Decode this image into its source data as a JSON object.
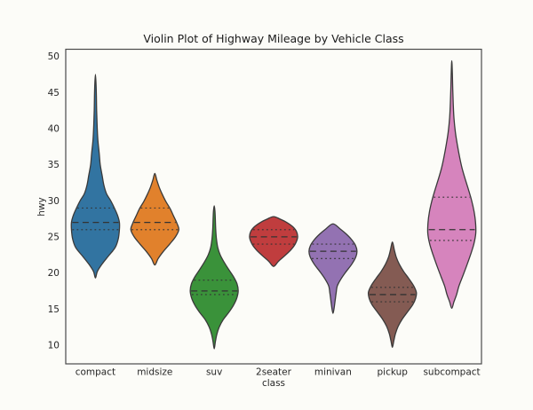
{
  "chart_data": {
    "type": "violin",
    "title": "Violin Plot of Highway Mileage by Vehicle Class",
    "xlabel": "class",
    "ylabel": "hwy",
    "ylim": [
      7.4,
      51.0
    ],
    "yticks": [
      10,
      15,
      20,
      25,
      30,
      35,
      40,
      45,
      50
    ],
    "grid": false,
    "legend": "none",
    "inner": "quartile",
    "categories": [
      "compact",
      "midsize",
      "suv",
      "2seater",
      "minivan",
      "pickup",
      "subcompact"
    ],
    "series": [
      {
        "name": "compact",
        "color": "#3274a1",
        "min": 19.3,
        "max": 47.5,
        "q1": 26,
        "median": 27,
        "q3": 29,
        "profile": [
          [
            19.3,
            0
          ],
          [
            20.2,
            0.08
          ],
          [
            21.2,
            0.27
          ],
          [
            22.3,
            0.53
          ],
          [
            23.5,
            0.82
          ],
          [
            24.7,
            0.95
          ],
          [
            26.0,
            1.0
          ],
          [
            27.0,
            1.0
          ],
          [
            28.0,
            0.92
          ],
          [
            29.0,
            0.79
          ],
          [
            30.0,
            0.64
          ],
          [
            31.0,
            0.46
          ],
          [
            32.2,
            0.35
          ],
          [
            33.5,
            0.28
          ],
          [
            35.0,
            0.2
          ],
          [
            36.5,
            0.16
          ],
          [
            38.5,
            0.1
          ],
          [
            40.5,
            0.07
          ],
          [
            42.5,
            0.05
          ],
          [
            44.5,
            0.04
          ],
          [
            46.2,
            0.025
          ],
          [
            47.5,
            0
          ]
        ]
      },
      {
        "name": "midsize",
        "color": "#e1812c",
        "min": 21.1,
        "max": 33.8,
        "q1": 26,
        "median": 27,
        "q3": 29,
        "profile": [
          [
            21.1,
            0
          ],
          [
            22.0,
            0.14
          ],
          [
            23.0,
            0.36
          ],
          [
            24.0,
            0.62
          ],
          [
            25.0,
            0.86
          ],
          [
            26.0,
            1.0
          ],
          [
            26.9,
            0.92
          ],
          [
            27.9,
            0.78
          ],
          [
            28.9,
            0.64
          ],
          [
            29.9,
            0.46
          ],
          [
            30.9,
            0.31
          ],
          [
            31.9,
            0.18
          ],
          [
            32.9,
            0.08
          ],
          [
            33.8,
            0
          ]
        ]
      },
      {
        "name": "suv",
        "color": "#3a923a",
        "min": 9.5,
        "max": 29.3,
        "q1": 17,
        "median": 17.5,
        "q3": 19,
        "profile": [
          [
            9.5,
            0
          ],
          [
            10.5,
            0.05
          ],
          [
            11.5,
            0.11
          ],
          [
            12.5,
            0.21
          ],
          [
            13.5,
            0.37
          ],
          [
            14.5,
            0.6
          ],
          [
            15.5,
            0.8
          ],
          [
            16.5,
            0.94
          ],
          [
            17.5,
            1.0
          ],
          [
            18.5,
            0.95
          ],
          [
            19.5,
            0.8
          ],
          [
            20.5,
            0.6
          ],
          [
            21.5,
            0.41
          ],
          [
            22.5,
            0.25
          ],
          [
            23.5,
            0.15
          ],
          [
            24.8,
            0.09
          ],
          [
            26.2,
            0.06
          ],
          [
            27.6,
            0.045
          ],
          [
            28.6,
            0.03
          ],
          [
            29.3,
            0
          ]
        ]
      },
      {
        "name": "2seater",
        "color": "#c03d3e",
        "min": 20.9,
        "max": 27.8,
        "q1": 24,
        "median": 25,
        "q3": 26,
        "profile": [
          [
            20.9,
            0
          ],
          [
            21.6,
            0.2
          ],
          [
            22.4,
            0.47
          ],
          [
            23.2,
            0.72
          ],
          [
            24.0,
            0.9
          ],
          [
            24.9,
            1.0
          ],
          [
            25.7,
            0.96
          ],
          [
            26.4,
            0.8
          ],
          [
            27.0,
            0.55
          ],
          [
            27.45,
            0.28
          ],
          [
            27.8,
            0
          ]
        ]
      },
      {
        "name": "minivan",
        "color": "#9372b2",
        "min": 14.4,
        "max": 26.8,
        "q1": 22,
        "median": 23,
        "q3": 24,
        "profile": [
          [
            14.4,
            0
          ],
          [
            15.2,
            0.05
          ],
          [
            16.2,
            0.09
          ],
          [
            17.2,
            0.13
          ],
          [
            18.2,
            0.18
          ],
          [
            19.2,
            0.34
          ],
          [
            20.2,
            0.55
          ],
          [
            21.2,
            0.78
          ],
          [
            22.2,
            0.95
          ],
          [
            23.0,
            1.0
          ],
          [
            23.8,
            0.94
          ],
          [
            24.6,
            0.78
          ],
          [
            25.4,
            0.55
          ],
          [
            26.1,
            0.3
          ],
          [
            26.8,
            0
          ]
        ]
      },
      {
        "name": "pickup",
        "color": "#845b53",
        "min": 9.7,
        "max": 24.3,
        "q1": 16,
        "median": 17,
        "q3": 18,
        "profile": [
          [
            9.7,
            0
          ],
          [
            10.6,
            0.06
          ],
          [
            11.6,
            0.13
          ],
          [
            12.6,
            0.24
          ],
          [
            13.6,
            0.41
          ],
          [
            14.6,
            0.63
          ],
          [
            15.6,
            0.85
          ],
          [
            16.5,
            0.97
          ],
          [
            17.3,
            1.0
          ],
          [
            18.2,
            0.89
          ],
          [
            19.2,
            0.69
          ],
          [
            20.2,
            0.47
          ],
          [
            21.2,
            0.29
          ],
          [
            22.2,
            0.16
          ],
          [
            23.2,
            0.08
          ],
          [
            24.3,
            0
          ]
        ]
      },
      {
        "name": "subcompact",
        "color": "#d684bd",
        "min": 15.1,
        "max": 49.4,
        "q1": 24.5,
        "median": 26,
        "q3": 30.5,
        "profile": [
          [
            15.1,
            0
          ],
          [
            16.0,
            0.09
          ],
          [
            17.0,
            0.2
          ],
          [
            18.2,
            0.3
          ],
          [
            19.5,
            0.45
          ],
          [
            21.0,
            0.62
          ],
          [
            22.5,
            0.78
          ],
          [
            24.0,
            0.92
          ],
          [
            25.5,
            1.0
          ],
          [
            27.0,
            0.99
          ],
          [
            28.5,
            0.93
          ],
          [
            30.0,
            0.83
          ],
          [
            31.5,
            0.7
          ],
          [
            33.0,
            0.56
          ],
          [
            34.5,
            0.43
          ],
          [
            36.0,
            0.33
          ],
          [
            37.8,
            0.23
          ],
          [
            39.5,
            0.15
          ],
          [
            41.5,
            0.09
          ],
          [
            43.5,
            0.06
          ],
          [
            45.5,
            0.04
          ],
          [
            47.5,
            0.025
          ],
          [
            49.4,
            0
          ]
        ]
      }
    ]
  },
  "styles": {
    "background": "#fcfcf8",
    "edge_color": "#3a3a3a",
    "inner_line_color": "#333333",
    "spine_color": "#4a4a4a",
    "text_color": "#262626",
    "title_color": "#1a1a1a"
  }
}
